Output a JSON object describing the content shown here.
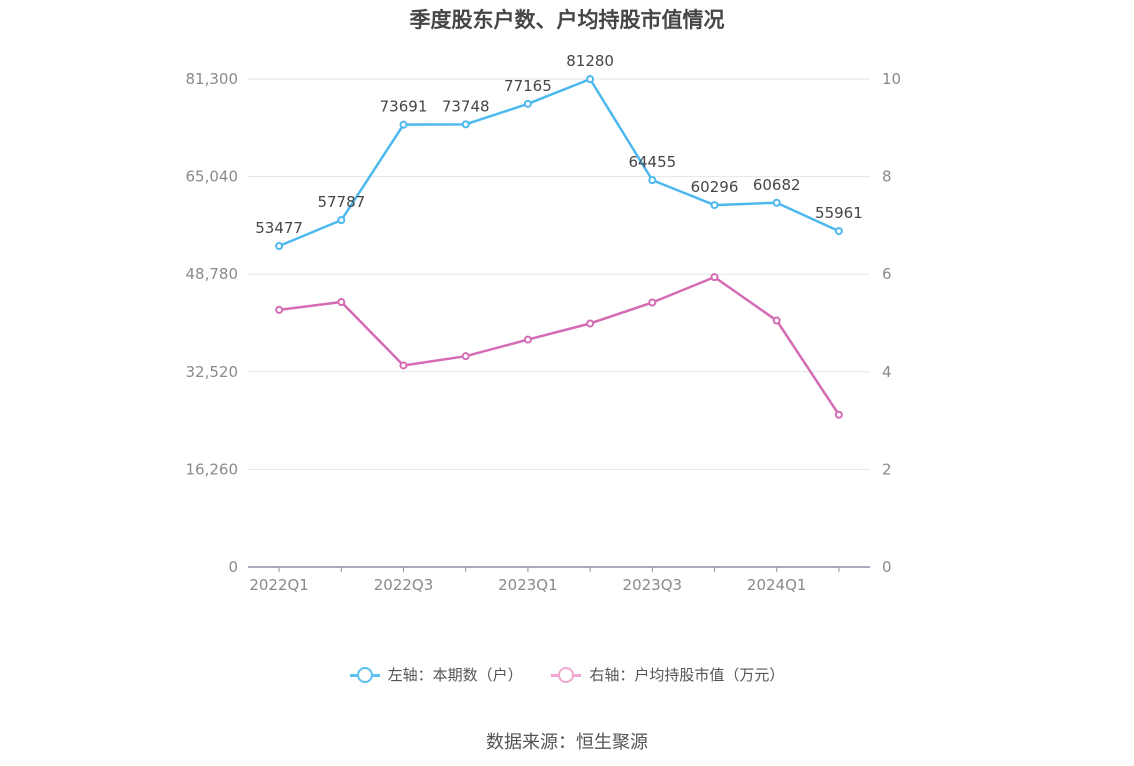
{
  "title": "季度股东户数、户均持股市值情况",
  "source": "数据来源：恒生聚源",
  "legend": [
    {
      "label": "左轴：本期数（户）",
      "color": "#5bc0f0"
    },
    {
      "label": "右轴：户均持股市值（万元）",
      "color": "#f0a8d0"
    }
  ],
  "chart_data": {
    "type": "line",
    "categories": [
      "2022Q1",
      "2022Q2",
      "2022Q3",
      "2022Q4",
      "2023Q1",
      "2023Q2",
      "2023Q3",
      "2023Q4",
      "2024Q1",
      "2024Q2"
    ],
    "x_tick_labels": [
      "2022Q1",
      "2022Q3",
      "2023Q1",
      "2023Q3",
      "2024Q1"
    ],
    "left_axis": {
      "ticks": [
        "0",
        "16,260",
        "32,520",
        "48,780",
        "65,040",
        "81,300"
      ],
      "min": 0,
      "max": 81300
    },
    "right_axis": {
      "ticks": [
        "0",
        "2",
        "4",
        "6",
        "8",
        "10"
      ],
      "min": 0,
      "max": 10
    },
    "series": [
      {
        "name": "左轴：本期数（户）",
        "axis": "left",
        "color": "#4db8ee",
        "values": [
          53477,
          57787,
          73691,
          73748,
          77165,
          81280,
          64455,
          60296,
          60682,
          55961
        ],
        "labels": [
          "53477",
          "57787",
          "73691",
          "73748",
          "77165",
          "81280",
          "64455",
          "60296",
          "60682",
          "55961"
        ]
      },
      {
        "name": "右轴：户均持股市值（万元）",
        "axis": "right",
        "color": "#d46bb4",
        "values": [
          5.27,
          5.43,
          4.13,
          4.32,
          4.66,
          4.99,
          5.42,
          5.94,
          5.05,
          3.12
        ]
      }
    ],
    "grid": true
  }
}
